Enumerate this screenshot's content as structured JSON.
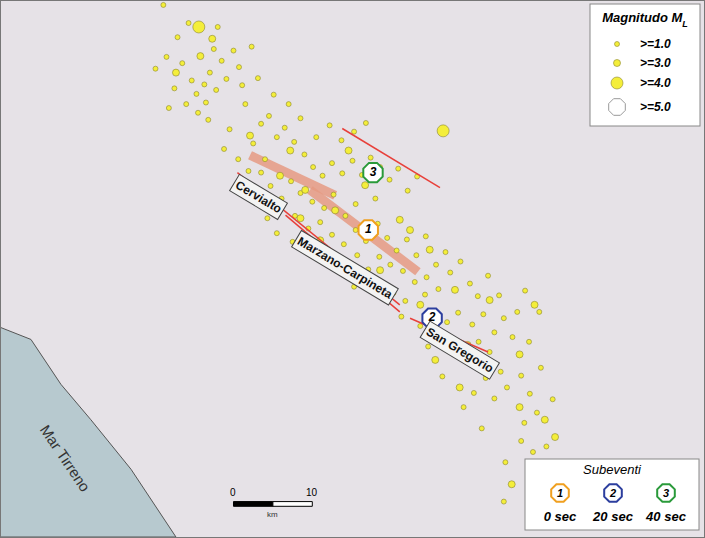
{
  "chart_data": {
    "type": "scatter",
    "xlim": [
      0,
      89.2
    ],
    "ylim": [
      0,
      68.1
    ],
    "tick_labels": false,
    "grid": false,
    "legend": "top right",
    "legend_title": {
      "text": "Magnitudo M",
      "subscript": "L"
    },
    "color": "#f4ee3a",
    "series": [
      {
        "name": ">=1.0",
        "marker": "circle",
        "x": [
          20.6,
          19.6,
          21.0,
          23.0,
          24.2,
          25.8,
          26.5,
          24.8,
          26.0,
          27.3,
          25.0,
          26.3,
          23.5,
          22.0,
          21.3,
          28.0,
          28.6,
          27.0,
          29.5,
          30.6,
          31.0,
          33.0,
          34.0,
          32.0,
          29.0,
          28.3,
          30.1,
          31.4,
          33.5,
          35.0,
          36.0,
          37.2,
          38.5,
          39.6,
          40.8,
          42.0,
          43.3,
          44.6,
          45.8,
          46.9,
          48.1,
          49.3,
          50.4,
          51.6,
          52.8,
          47.5,
          45.0,
          43.7,
          42.2,
          41.0,
          39.5,
          38.0,
          36.8,
          35.6,
          34.2,
          33.0,
          37.3,
          39.0,
          40.5,
          42.0,
          43.5,
          45.0,
          46.3,
          47.8,
          49.0,
          50.2,
          51.5,
          52.7,
          53.9,
          55.2,
          56.4,
          54.0,
          52.5,
          51.0,
          49.4,
          48.0,
          46.6,
          45.2,
          44.0,
          47.0,
          49.8,
          51.3,
          53.8,
          55.5,
          57.0,
          58.3,
          59.5,
          60.5,
          61.8,
          58.0,
          56.6,
          55.0,
          53.2,
          59.8,
          61.2,
          62.6,
          63.8,
          64.9,
          62.0,
          60.6,
          58.4,
          57.0,
          63.4,
          61.5,
          60.0,
          62.6,
          64.2,
          66.0,
          67.1,
          68.0,
          66.4,
          69.2,
          67.5,
          66.0,
          70.0,
          68.5,
          67.0,
          68.3,
          65.5,
          66.5,
          63.2,
          40.0,
          41.7,
          43.2,
          44.8,
          46.3,
          38.0,
          36.5,
          34.6,
          32.6,
          30.2,
          31.8,
          27.5,
          22.4,
          23.8,
          35.0,
          33.8,
          37.0,
          40.2,
          42.6,
          44.8,
          50.8,
          54.2,
          56.0,
          58.7,
          61.0,
          64.0,
          63.8
        ],
        "y": [
          67.6,
          59.5,
          61.0,
          60.2,
          58.0,
          57.5,
          59.0,
          56.3,
          55.2,
          56.8,
          53.9,
          53.0,
          55.0,
          57.0,
          54.5,
          60.5,
          58.2,
          62.0,
          61.8,
          57.4,
          55.0,
          52.5,
          53.5,
          50.0,
          51.8,
          49.3,
          48.0,
          46.5,
          48.0,
          50.8,
          52.0,
          50.2,
          48.6,
          47.0,
          45.9,
          47.5,
          46.2,
          47.8,
          46.0,
          48.2,
          47.0,
          45.4,
          46.8,
          44.0,
          45.8,
          43.0,
          42.3,
          40.8,
          43.5,
          41.8,
          42.6,
          43.7,
          45.2,
          43.0,
          44.6,
          46.3,
          40.8,
          39.2,
          40.0,
          38.4,
          37.2,
          39.0,
          37.6,
          39.8,
          38.0,
          36.4,
          37.8,
          35.8,
          38.2,
          34.6,
          36.2,
          33.0,
          32.4,
          33.8,
          34.6,
          35.6,
          34.0,
          35.8,
          33.9,
          31.5,
          31.0,
          30.0,
          30.8,
          31.5,
          33.6,
          35.0,
          32.2,
          30.6,
          33.2,
          28.5,
          27.3,
          28.0,
          26.8,
          27.0,
          28.3,
          26.0,
          27.8,
          25.4,
          23.5,
          24.8,
          22.8,
          24.6,
          21.0,
          20.2,
          18.3,
          17.6,
          19.0,
          20.5,
          18.2,
          15.8,
          14.5,
          11.5,
          10.8,
          12.2,
          17.5,
          21.5,
          24.8,
          28.6,
          28.6,
          31.3,
          30.7,
          50.8,
          52.3,
          50.4,
          51.5,
          52.6,
          53.2,
          55.0,
          56.2,
          58.3,
          59.7,
          62.3,
          64.8,
          63.5,
          65.3,
          38.6,
          40.5,
          37.5,
          36.0,
          35.0,
          31.8,
          28.0,
          24.2,
          20.4,
          16.5,
          13.8,
          9.5,
          4.5
        ]
      },
      {
        "name": ">=3.0",
        "marker": "circle",
        "x": [
          26.8,
          22.2,
          25.3,
          31.6,
          36.7,
          38.6,
          42.4,
          46.2,
          50.6,
          54.4,
          57.6,
          62.0,
          59.2,
          55.1,
          65.8,
          67.7,
          58.2,
          69.0,
          70.3,
          64.8,
          65.8,
          38.0,
          40.5,
          48.1,
          51.9,
          35.4,
          53.2,
          44.1
        ],
        "y": [
          63.3,
          59.0,
          61.1,
          51.0,
          49.1,
          44.1,
          41.5,
          44.7,
          40.3,
          36.5,
          31.4,
          30.1,
          24.4,
          22.5,
          23.2,
          29.5,
          19.0,
          14.9,
          12.7,
          6.7,
          16.5,
          40.5,
          37.7,
          33.9,
          39.0,
          45.9,
          29.5,
          49.1
        ]
      },
      {
        "name": ">=4.0",
        "marker": "circle",
        "x": [
          25.1,
          56.1
        ],
        "y": [
          64.8,
          51.6
        ]
      },
      {
        "name": ">=5.0",
        "marker": "octagon",
        "x": [],
        "y": []
      }
    ],
    "subevents": {
      "title": "Subeventi",
      "items": [
        {
          "label": "1",
          "time": "0 sec",
          "color": "#f0a020",
          "x": 46.6,
          "y": 39.0
        },
        {
          "label": "2",
          "time": "20 sec",
          "color": "#2c3e9e",
          "x": 54.7,
          "y": 27.8
        },
        {
          "label": "3",
          "time": "40 sec",
          "color": "#2a9a3a",
          "x": 47.2,
          "y": 46.3
        }
      ]
    },
    "fault_lines": {
      "color": "#e8403a",
      "lines": [
        {
          "x": [
            30.0,
            50.6
          ],
          "y": [
            46.3,
            29.5
          ]
        },
        {
          "x": [
            36.1,
            50.6
          ],
          "y": [
            40.9,
            28.6
          ]
        },
        {
          "x": [
            51.9,
            61.8
          ],
          "y": [
            27.8,
            23.5
          ]
        },
        {
          "x": [
            43.3,
            55.7
          ],
          "y": [
            51.9,
            44.4
          ]
        }
      ]
    },
    "fault_zones": {
      "color": "#e59a82",
      "zones": [
        {
          "x": [
            31.6,
            42.4
          ],
          "y": [
            48.5,
            43.4
          ]
        },
        {
          "x": [
            39.2,
            52.9
          ],
          "y": [
            44.1,
            33.7
          ]
        }
      ]
    },
    "labels": [
      {
        "text": "Cervialto",
        "x": 32.7,
        "y": 43.2
      },
      {
        "text": "Marzano-Carpineta",
        "x": 43.7,
        "y": 34.2
      },
      {
        "text": "San Gregorio",
        "x": 58.2,
        "y": 23.8
      }
    ],
    "sea": {
      "label": "Mar Tirreno",
      "color": "#b7c9cf",
      "x": [
        0,
        3.8,
        7.6,
        11.4,
        16.5,
        22.2,
        0
      ],
      "y": [
        26.6,
        25.1,
        19.4,
        14.9,
        8.6,
        0,
        0
      ],
      "label_x": 8.2,
      "label_y": 10.0
    },
    "scale_bar": {
      "ticks": [
        0,
        10
      ],
      "unit": "km"
    }
  }
}
